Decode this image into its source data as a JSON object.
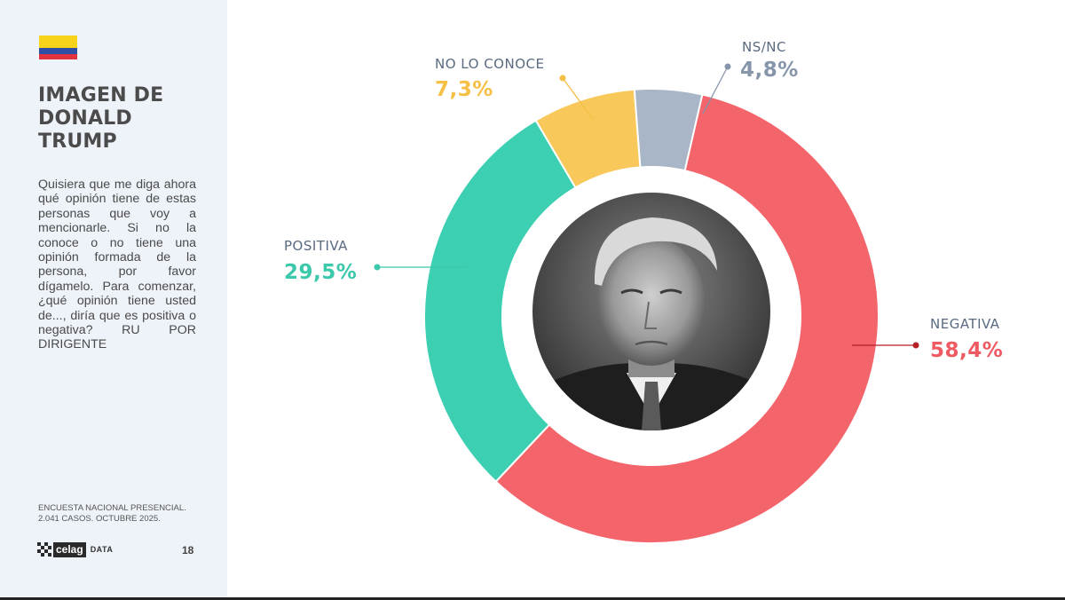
{
  "slide": {
    "title": "IMAGEN DE\nDONALD\nTRUMP",
    "question": "Quisiera que me diga ahora qué opinión tiene de estas personas que voy a mencionarle. Si no la conoce o no tiene una opinión formada de la persona, por favor dígamelo. Para comenzar, ¿qué opinión tiene usted de..., diría que es positiva o negativa? RU POR DIRIGENTE",
    "source": "ENCUESTA NACIONAL PRESENCIAL.\n2.041 CASOS. OCTUBRE 2025.",
    "logo_text": "celag",
    "logo_suffix": "DATA",
    "page_number": "18"
  },
  "flag_colors": [
    "#f8d31c",
    "#2e4fa5",
    "#e2323e"
  ],
  "chart_data": {
    "type": "pie",
    "variant": "donut",
    "title": "IMAGEN DE DONALD TRUMP",
    "categories": [
      "NEGATIVA",
      "POSITIVA",
      "NO LO CONOCE",
      "NS/NC"
    ],
    "values": [
      58.4,
      29.5,
      7.3,
      4.8
    ],
    "value_labels": [
      "58,4%",
      "29,5%",
      "7,3%",
      "4,8%"
    ],
    "colors": [
      "#f4646b",
      "#3dcfb2",
      "#f9c85a",
      "#a9b6c8"
    ],
    "label_colors": [
      "#ef5a62",
      "#3cc8ab",
      "#f6bf45",
      "#8795ab"
    ],
    "name_colors": [
      "#5a6a80",
      "#5a6a80",
      "#5a6a80",
      "#5a6a80"
    ],
    "center_image": "portrait-photo"
  }
}
